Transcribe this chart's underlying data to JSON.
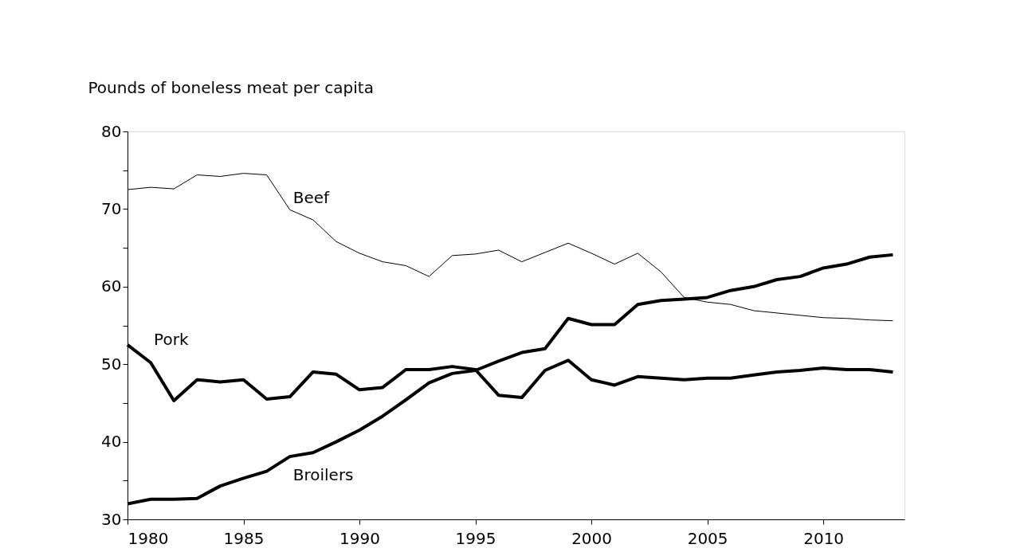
{
  "chart_data": {
    "type": "line",
    "ylabel": "Pounds of boneless meat per capita",
    "x": [
      1980,
      1981,
      1982,
      1983,
      1984,
      1985,
      1986,
      1987,
      1988,
      1989,
      1990,
      1991,
      1992,
      1993,
      1994,
      1995,
      1996,
      1997,
      1998,
      1999,
      2000,
      2001,
      2002,
      2003,
      2004,
      2005,
      2006,
      2007,
      2008,
      2009,
      2010,
      2011,
      2012,
      2013
    ],
    "series": [
      {
        "name": "Beef",
        "color": "#000000",
        "values": [
          72.5,
          72.8,
          72.6,
          74.4,
          74.2,
          74.6,
          74.4,
          69.9,
          68.6,
          65.8,
          64.3,
          63.2,
          62.7,
          61.3,
          64.0,
          64.2,
          64.7,
          63.2,
          64.4,
          65.6,
          64.3,
          62.9,
          64.3,
          61.9,
          58.6,
          58.0,
          57.7,
          56.9,
          56.6,
          56.3,
          56.0,
          55.9,
          55.7,
          55.6
        ]
      },
      {
        "name": "Pork",
        "color": "#000000",
        "values": [
          52.5,
          50.2,
          45.3,
          48.0,
          47.7,
          48.0,
          45.5,
          45.8,
          49.0,
          48.7,
          46.7,
          47.0,
          49.3,
          49.3,
          49.7,
          49.3,
          46.0,
          45.7,
          49.2,
          50.5,
          48.0,
          47.3,
          48.4,
          48.2,
          48.0,
          48.2,
          48.2,
          48.6,
          49.0,
          49.2,
          49.5,
          49.3,
          49.3,
          49.0
        ]
      },
      {
        "name": "Broilers",
        "color": "#000000",
        "values": [
          32.0,
          32.6,
          32.6,
          32.7,
          34.3,
          35.3,
          36.2,
          38.1,
          38.6,
          40.0,
          41.5,
          43.3,
          45.4,
          47.6,
          48.8,
          49.2,
          50.4,
          51.5,
          52.0,
          55.9,
          55.1,
          55.1,
          57.7,
          58.2,
          58.4,
          58.6,
          59.5,
          60.0,
          60.9,
          61.3,
          62.4,
          62.9,
          63.8,
          64.1
        ]
      }
    ],
    "xlim": [
      1980,
      2013.5
    ],
    "xticks": [
      1980,
      1985,
      1990,
      1995,
      2000,
      2005,
      2010
    ],
    "ylim": [
      30,
      80
    ],
    "yticks": [
      30,
      {
        "value": 35,
        "label": null
      },
      40,
      {
        "value": 45,
        "label": null
      },
      50,
      {
        "value": 55,
        "label": null
      },
      60,
      {
        "value": 65,
        "label": null
      },
      70,
      {
        "value": 75,
        "label": null
      },
      80
    ],
    "grid": false,
    "marker": "none",
    "line_style": "solid"
  }
}
